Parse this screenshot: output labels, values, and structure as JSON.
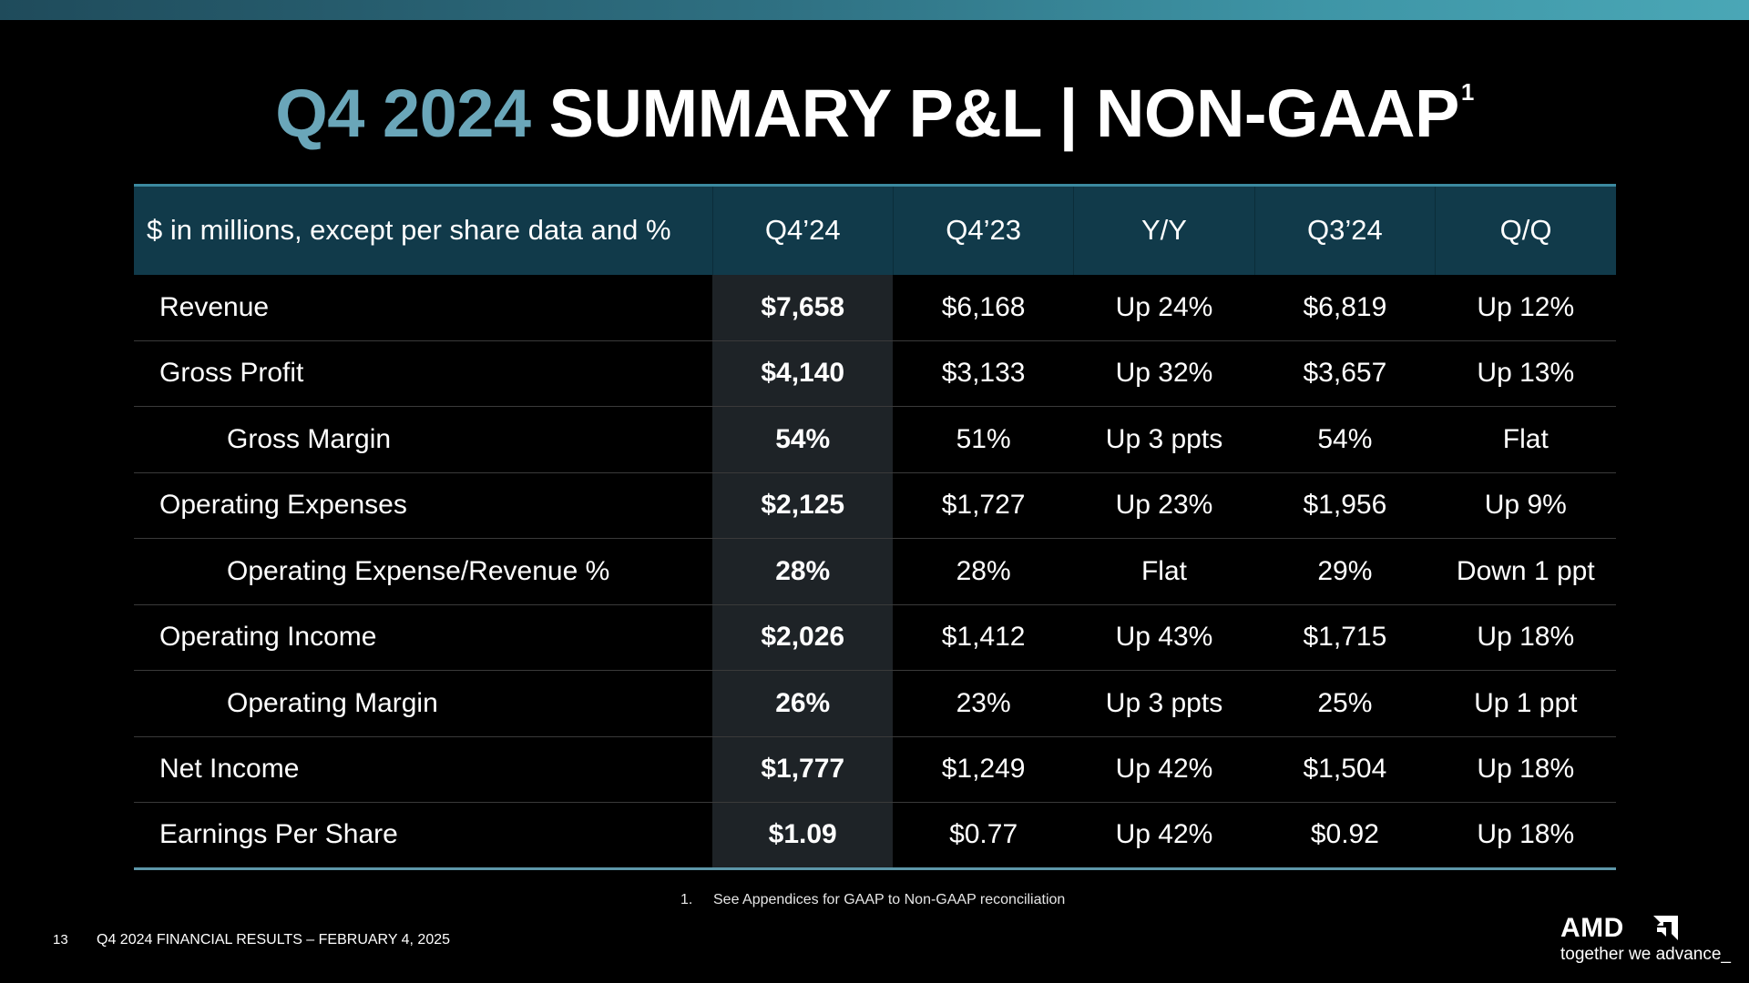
{
  "title": {
    "accent": "Q4 2024",
    "main": "SUMMARY P&L  |  NON-GAAP",
    "superscript": "1"
  },
  "table": {
    "header": [
      "$ in millions, except per share data and %",
      "Q4’24",
      "Q4’23",
      "Y/Y",
      "Q3’24",
      "Q/Q"
    ],
    "rows": [
      {
        "label": "Revenue",
        "indent": false,
        "values": [
          "$7,658",
          "$6,168",
          "Up 24%",
          "$6,819",
          "Up 12%"
        ]
      },
      {
        "label": "Gross Profit",
        "indent": false,
        "values": [
          "$4,140",
          "$3,133",
          "Up 32%",
          "$3,657",
          "Up 13%"
        ]
      },
      {
        "label": "Gross Margin",
        "indent": true,
        "values": [
          "54%",
          "51%",
          "Up 3 ppts",
          "54%",
          "Flat"
        ]
      },
      {
        "label": "Operating Expenses",
        "indent": false,
        "values": [
          "$2,125",
          "$1,727",
          "Up 23%",
          "$1,956",
          "Up 9%"
        ]
      },
      {
        "label": "Operating Expense/Revenue %",
        "indent": true,
        "values": [
          "28%",
          "28%",
          "Flat",
          "29%",
          "Down 1 ppt"
        ]
      },
      {
        "label": "Operating Income",
        "indent": false,
        "values": [
          "$2,026",
          "$1,412",
          "Up 43%",
          "$1,715",
          "Up 18%"
        ]
      },
      {
        "label": "Operating Margin",
        "indent": true,
        "values": [
          "26%",
          "23%",
          "Up 3 ppts",
          "25%",
          "Up 1 ppt"
        ]
      },
      {
        "label": "Net Income",
        "indent": false,
        "values": [
          "$1,777",
          "$1,249",
          "Up 42%",
          "$1,504",
          "Up 18%"
        ]
      },
      {
        "label": "Earnings Per Share",
        "indent": false,
        "values": [
          "$1.09",
          "$0.77",
          "Up 42%",
          "$0.92",
          "Up 18%"
        ]
      }
    ]
  },
  "footnote": {
    "number": "1.",
    "text": "See Appendices for GAAP to Non-GAAP reconciliation"
  },
  "footer": {
    "page_number": "13",
    "text": "Q4 2024 FINANCIAL RESULTS – FEBRUARY 4, 2025"
  },
  "logo": {
    "wordmark": "AMD",
    "tagline": "together we advance_"
  },
  "colors": {
    "accent_title": "#6aa6b9",
    "header_bg": "#113a4a",
    "highlight_col": "#1e2327",
    "top_bar": "#3e95a6"
  }
}
